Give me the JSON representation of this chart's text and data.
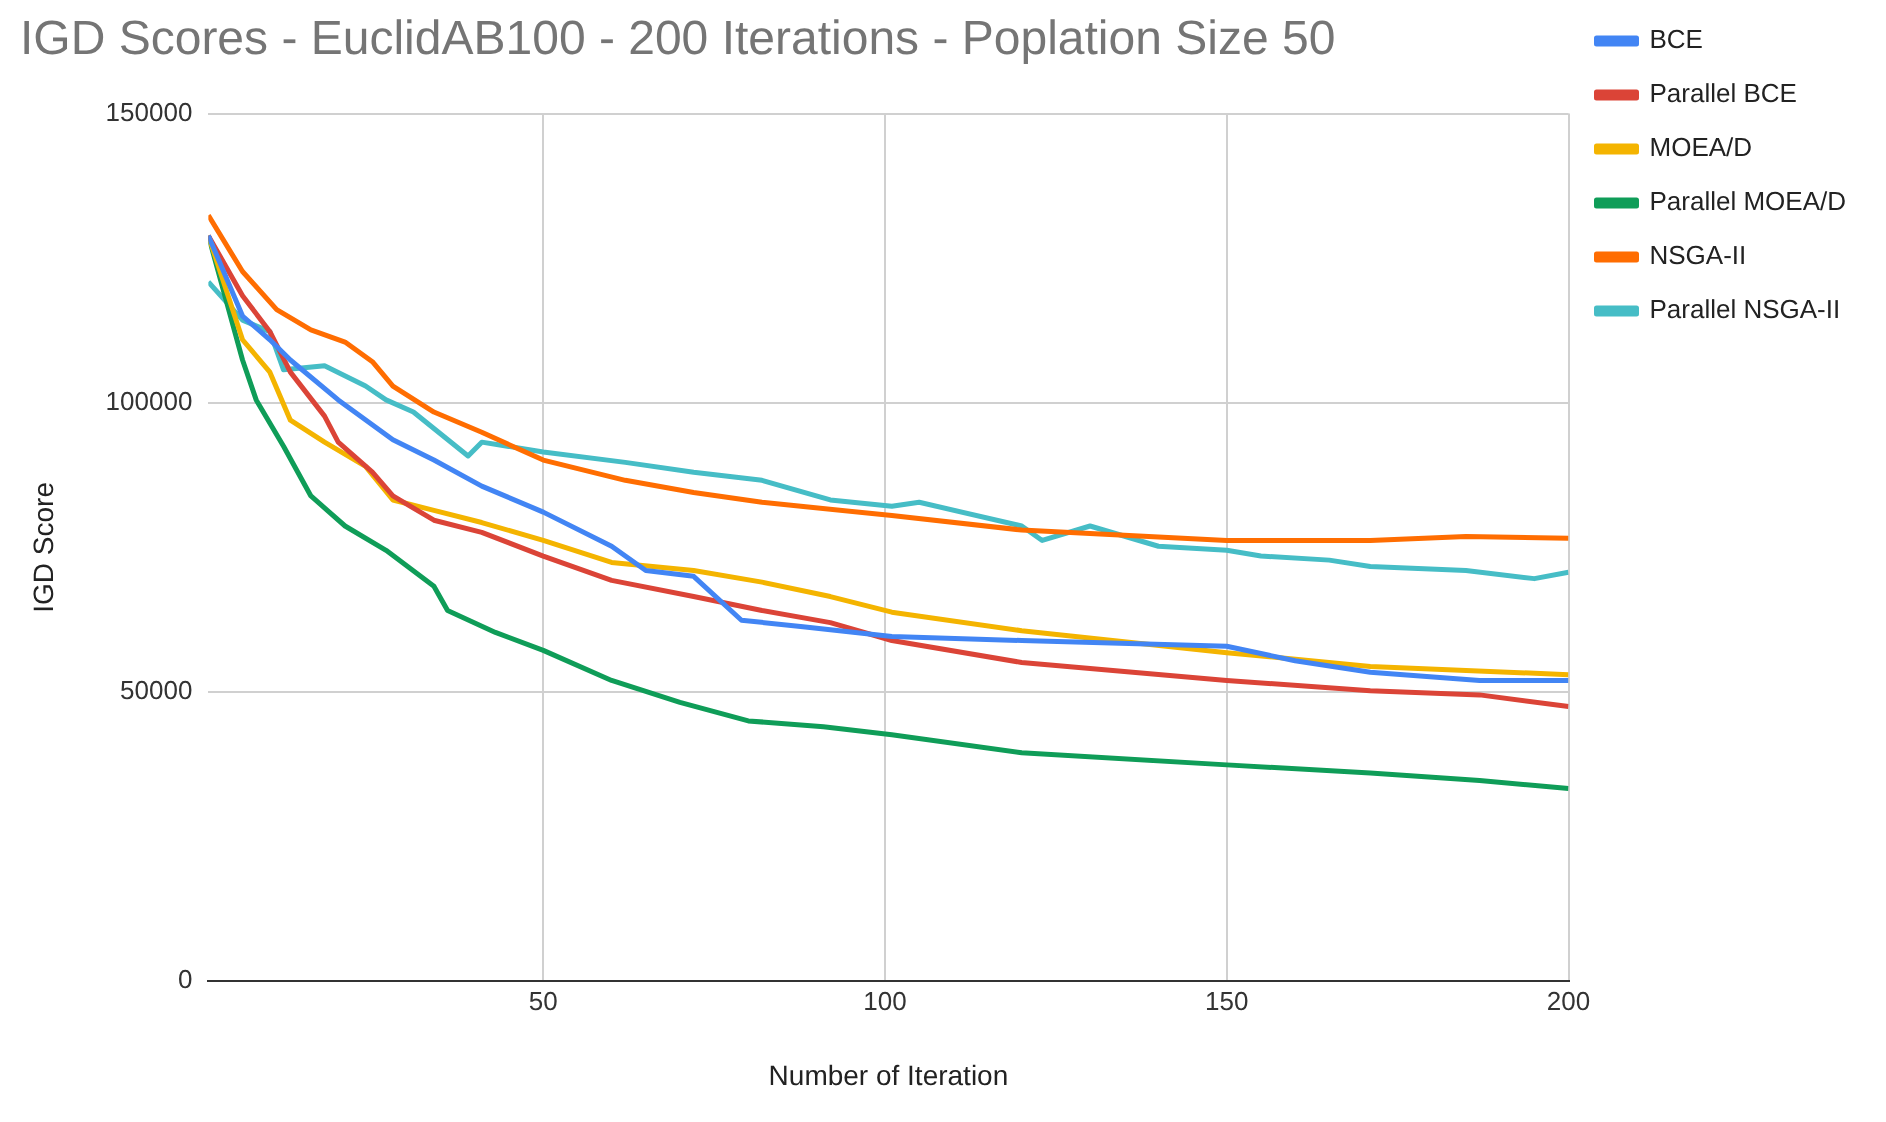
{
  "chart_data": {
    "type": "line",
    "title": "IGD Scores - EuclidAB100 - 200 Iterations - Poplation Size 50",
    "xlabel": "Number of Iteration",
    "ylabel": "IGD Score",
    "xlim": [
      1,
      200
    ],
    "xticks": [
      50,
      100,
      150,
      200
    ],
    "ylim": [
      0,
      150000
    ],
    "yticks": [
      0,
      50000,
      100000,
      150000
    ],
    "grid": true,
    "legend": "right",
    "marker": "none",
    "series": [
      {
        "name": "BCE",
        "color": "#4285f4",
        "x": [
          1,
          6,
          10,
          13,
          20,
          28,
          34,
          41,
          50,
          60,
          65,
          72,
          79,
          88,
          101,
          120,
          150,
          160,
          171,
          187,
          200
        ],
        "values": [
          128900,
          115000,
          110900,
          107400,
          100500,
          93600,
          90100,
          85600,
          81100,
          75200,
          71000,
          70000,
          62400,
          61300,
          59600,
          58900,
          57900,
          55400,
          53400,
          52000,
          52000
        ]
      },
      {
        "name": "Parallel BCE",
        "color": "#db4437",
        "x": [
          1,
          6,
          10,
          13,
          18,
          20,
          25,
          28,
          34,
          41,
          50,
          60,
          72,
          82,
          92,
          101,
          120,
          150,
          171,
          187,
          200
        ],
        "values": [
          128900,
          118500,
          112300,
          105300,
          97700,
          93200,
          88000,
          83900,
          79700,
          77600,
          73500,
          69300,
          66500,
          64100,
          62000,
          58900,
          55100,
          52000,
          50200,
          49500,
          47500
        ]
      },
      {
        "name": "MOEA/D",
        "color": "#f4b400",
        "x": [
          1,
          6,
          10,
          13,
          18,
          24,
          28,
          34,
          41,
          50,
          60,
          72,
          82,
          92,
          101,
          120,
          150,
          171,
          200
        ],
        "values": [
          128900,
          110900,
          105300,
          97000,
          93200,
          89000,
          83200,
          81400,
          79300,
          76200,
          72400,
          71000,
          69000,
          66500,
          63800,
          60600,
          56800,
          54400,
          53000
        ]
      },
      {
        "name": "Parallel MOEA/D",
        "color": "#0f9d58",
        "x": [
          1,
          6,
          8,
          12,
          16,
          21,
          27,
          34,
          36,
          43,
          50,
          60,
          70,
          80,
          91,
          101,
          120,
          150,
          171,
          187,
          200
        ],
        "values": [
          128900,
          107400,
          100500,
          92500,
          83900,
          78700,
          74500,
          68300,
          64100,
          60300,
          57200,
          52000,
          48200,
          45000,
          44000,
          42600,
          39500,
          37400,
          36000,
          34700,
          33300
        ]
      },
      {
        "name": "NSGA-II",
        "color": "#ff6d01",
        "x": [
          1,
          6,
          11,
          16,
          21,
          25,
          28,
          34,
          41,
          50,
          62,
          72,
          82,
          101,
          120,
          150,
          171,
          185,
          200
        ],
        "values": [
          132400,
          122700,
          116100,
          112600,
          110500,
          107100,
          102900,
          98400,
          94900,
          90100,
          86600,
          84500,
          82800,
          80500,
          78000,
          76200,
          76200,
          76900,
          76600
        ]
      },
      {
        "name": "Parallel NSGA-II",
        "color": "#46bdc6",
        "x": [
          1,
          6,
          10,
          12,
          18,
          24,
          27,
          31,
          39,
          41,
          50,
          62,
          72,
          82,
          92,
          101,
          105,
          120,
          123,
          130,
          140,
          150,
          155,
          165,
          171,
          185,
          195,
          200
        ],
        "values": [
          120900,
          114300,
          112300,
          105700,
          106400,
          102900,
          100500,
          98400,
          90800,
          93200,
          91500,
          89700,
          88000,
          86600,
          83200,
          82100,
          82800,
          78700,
          76200,
          78700,
          75200,
          74500,
          73500,
          72800,
          71700,
          71000,
          69600,
          70700
        ]
      }
    ]
  }
}
